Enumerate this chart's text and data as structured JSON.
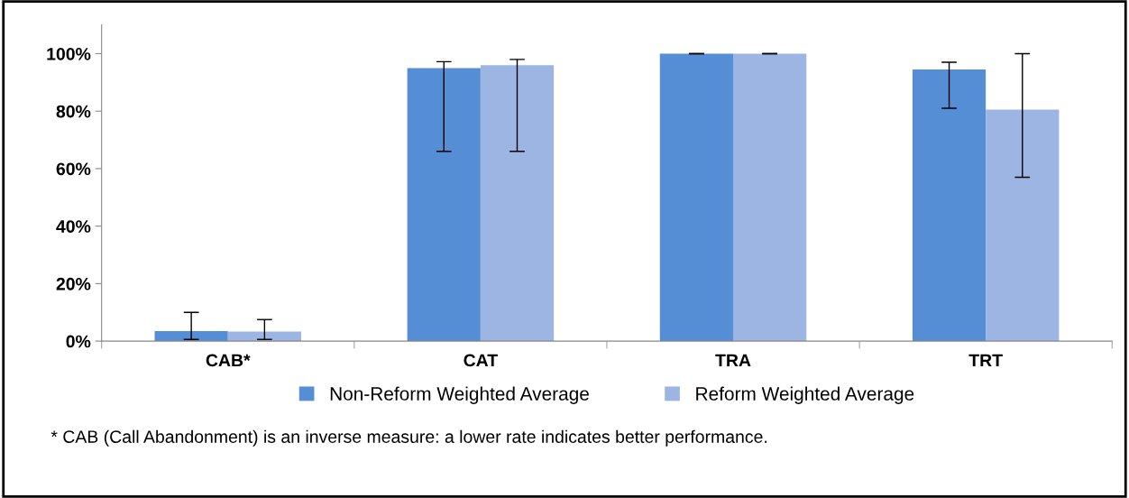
{
  "chart_data": {
    "type": "bar",
    "categories": [
      "CAB*",
      "CAT",
      "TRA",
      "TRT"
    ],
    "series": [
      {
        "name": "Non-Reform Weighted Average",
        "color": "#558ed5",
        "values": [
          3.5,
          95,
          100,
          94.5
        ],
        "errors": [
          [
            0.6,
            10
          ],
          [
            66,
            97.2
          ],
          [
            100,
            100
          ],
          [
            81,
            97
          ]
        ]
      },
      {
        "name": "Reform Weighted Average",
        "color": "#9db5e3",
        "values": [
          3.3,
          96,
          100,
          80.5
        ],
        "errors": [
          [
            0.6,
            7.5
          ],
          [
            66,
            98
          ],
          [
            100,
            100
          ],
          [
            57,
            100
          ]
        ]
      }
    ],
    "ylim": [
      0,
      110
    ],
    "yticks": [
      {
        "value": 0,
        "label": "0%"
      },
      {
        "value": 20,
        "label": "20%"
      },
      {
        "value": 40,
        "label": "40%"
      },
      {
        "value": 60,
        "label": "60%"
      },
      {
        "value": 80,
        "label": "80%"
      },
      {
        "value": 100,
        "label": "100%"
      }
    ],
    "grid": false,
    "legend": "bottom",
    "annotations": [
      "* CAB (Call Abandonment) is an inverse measure: a lower rate indicates better performance."
    ]
  }
}
